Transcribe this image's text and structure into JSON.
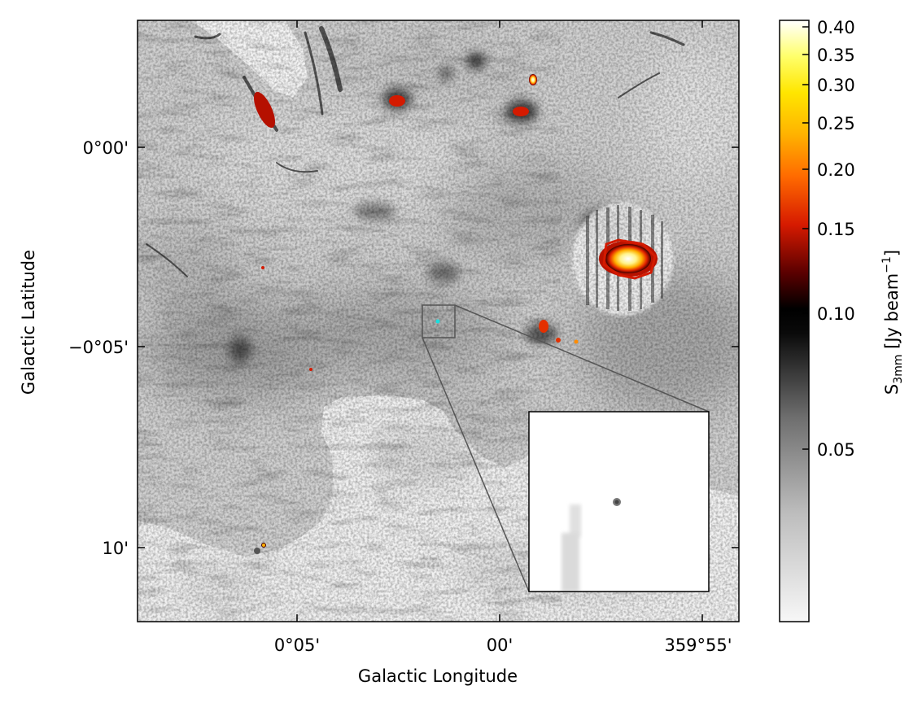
{
  "axes": {
    "xlabel": "Galactic Longitude",
    "ylabel": "Galactic Latitude",
    "x_ticks": [
      "0°05'",
      "00'",
      "359°55'"
    ],
    "y_ticks": [
      "0°00'",
      "−0°05'",
      "10'"
    ]
  },
  "colorbar": {
    "label_main": "S",
    "label_sub": "3mm",
    "label_rest": " [Jy beam",
    "label_sup": "−1",
    "label_close": "]",
    "ticks": [
      "0.40",
      "0.35",
      "0.30",
      "0.25",
      "0.20",
      "0.15",
      "0.10",
      "0.05"
    ],
    "colormap": "grey-to-hot (white→grey→black below 0.10, red→orange→yellow→white above)"
  },
  "colors": {
    "hot_red": "#d41a00",
    "hot_orange": "#ff8c00",
    "hot_yellow": "#ffee30",
    "marker_cyan": "#19e0e0",
    "frame": "#000000",
    "inset_link": "#555555"
  }
}
